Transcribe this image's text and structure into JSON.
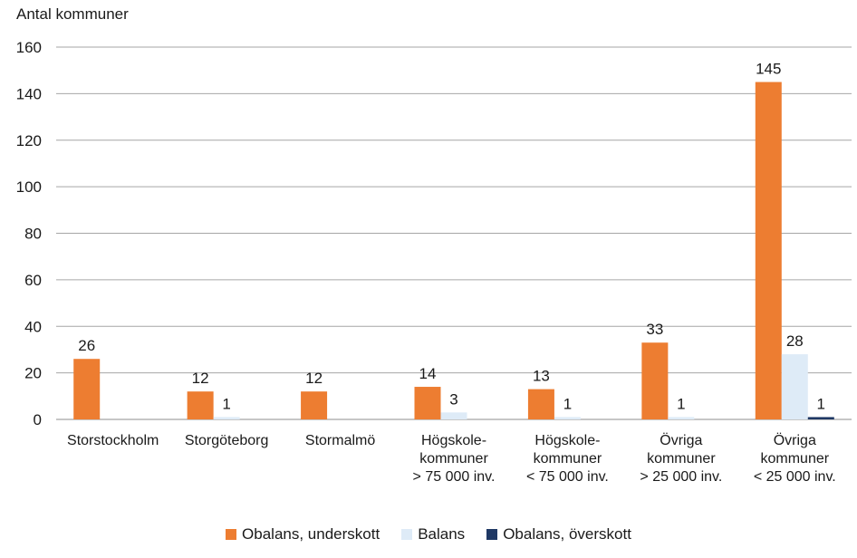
{
  "chart_data": {
    "type": "bar",
    "ylabel": "Antal kommuner",
    "ylim": [
      0,
      160
    ],
    "yticks": [
      0,
      20,
      40,
      60,
      80,
      100,
      120,
      140,
      160
    ],
    "grid": true,
    "legend_position": "bottom",
    "categories": [
      [
        "Storstockholm"
      ],
      [
        "Storgöteborg"
      ],
      [
        "Stormalmö"
      ],
      [
        "Högskole-",
        "kommuner",
        "> 75 000 inv."
      ],
      [
        "Högskole-",
        "kommuner",
        "< 75 000 inv."
      ],
      [
        "Övriga",
        "kommuner",
        "> 25 000 inv."
      ],
      [
        "Övriga",
        "kommuner",
        "< 25 000 inv."
      ]
    ],
    "series": [
      {
        "name": "Obalans, underskott",
        "color": "#ED7D31",
        "values": [
          26,
          12,
          12,
          14,
          13,
          33,
          145
        ]
      },
      {
        "name": "Balans",
        "color": "#DEEBF7",
        "values": [
          0,
          1,
          0,
          3,
          1,
          1,
          28
        ]
      },
      {
        "name": "Obalans, överskott",
        "color": "#1F3864",
        "values": [
          0,
          0,
          0,
          0,
          0,
          0,
          1
        ]
      }
    ]
  }
}
